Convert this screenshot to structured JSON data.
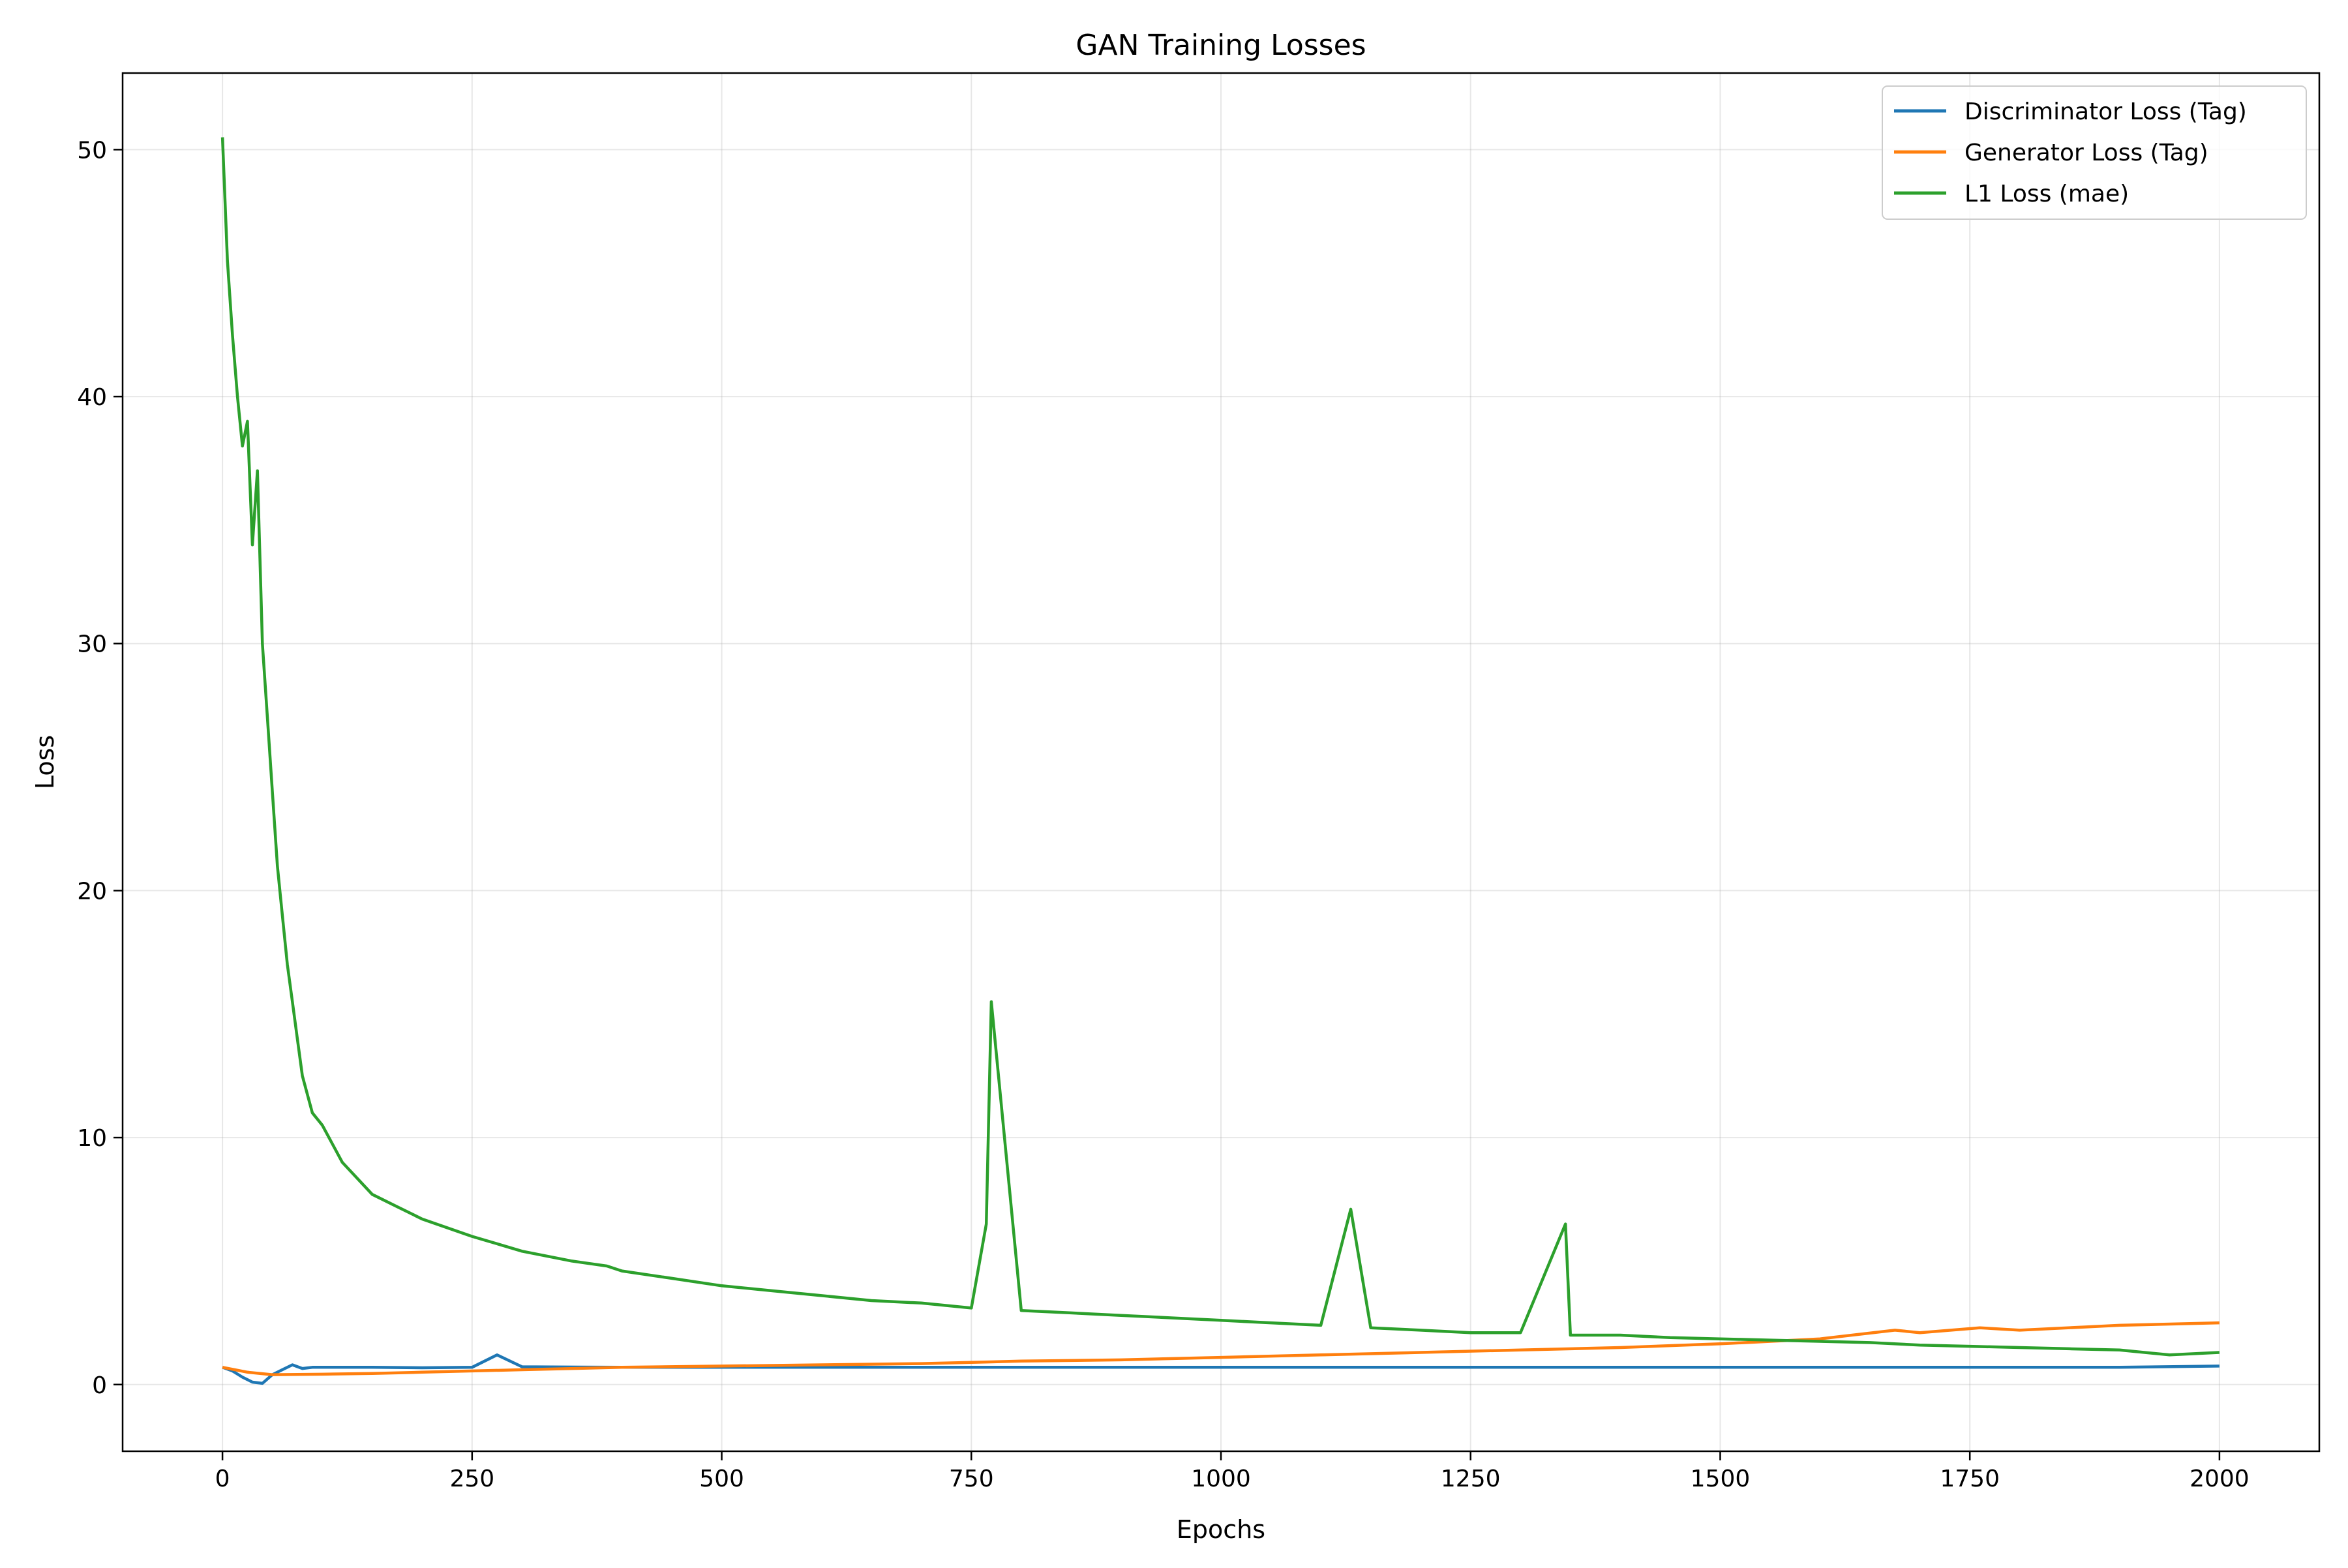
{
  "chart_data": {
    "type": "line",
    "title": "GAN Training Losses",
    "xlabel": "Epochs",
    "ylabel": "Loss",
    "xlim": [
      -100,
      2100
    ],
    "ylim": [
      -2.7,
      53.1
    ],
    "xticks": [
      0,
      250,
      500,
      750,
      1000,
      1250,
      1500,
      1750,
      2000
    ],
    "yticks": [
      0,
      10,
      20,
      30,
      40,
      50
    ],
    "grid": true,
    "legend_position": "top-right",
    "series": [
      {
        "name": "Discriminator Loss (Tag)",
        "color": "#1f77b4",
        "x": [
          0,
          10,
          20,
          30,
          40,
          50,
          60,
          70,
          80,
          90,
          100,
          150,
          200,
          250,
          275,
          300,
          400,
          500,
          600,
          700,
          800,
          900,
          1000,
          1100,
          1200,
          1300,
          1400,
          1500,
          1600,
          1700,
          1800,
          1900,
          2000
        ],
        "values": [
          0.7,
          0.55,
          0.3,
          0.1,
          0.05,
          0.4,
          0.6,
          0.8,
          0.65,
          0.7,
          0.7,
          0.7,
          0.68,
          0.7,
          1.2,
          0.72,
          0.7,
          0.7,
          0.7,
          0.7,
          0.7,
          0.7,
          0.7,
          0.7,
          0.7,
          0.7,
          0.7,
          0.7,
          0.7,
          0.7,
          0.7,
          0.7,
          0.75
        ]
      },
      {
        "name": "Generator Loss (Tag)",
        "color": "#ff7f0e",
        "x": [
          0,
          25,
          50,
          100,
          150,
          200,
          250,
          300,
          400,
          500,
          600,
          700,
          750,
          800,
          900,
          1000,
          1100,
          1200,
          1300,
          1400,
          1500,
          1600,
          1675,
          1700,
          1760,
          1800,
          1900,
          2000
        ],
        "values": [
          0.7,
          0.5,
          0.4,
          0.42,
          0.45,
          0.5,
          0.55,
          0.6,
          0.7,
          0.75,
          0.8,
          0.85,
          0.9,
          0.95,
          1.0,
          1.1,
          1.2,
          1.3,
          1.4,
          1.5,
          1.65,
          1.85,
          2.2,
          2.1,
          2.3,
          2.2,
          2.4,
          2.5
        ]
      },
      {
        "name": "L1 Loss (mae)",
        "color": "#2ca02c",
        "x": [
          0,
          5,
          10,
          15,
          20,
          25,
          30,
          35,
          40,
          45,
          50,
          55,
          60,
          65,
          70,
          75,
          80,
          90,
          100,
          120,
          150,
          175,
          200,
          250,
          275,
          300,
          350,
          385,
          400,
          450,
          500,
          550,
          600,
          650,
          700,
          750,
          765,
          770,
          800,
          850,
          900,
          950,
          1000,
          1050,
          1100,
          1130,
          1150,
          1200,
          1250,
          1300,
          1345,
          1350,
          1400,
          1450,
          1500,
          1550,
          1600,
          1650,
          1700,
          1750,
          1800,
          1850,
          1900,
          1950,
          2000
        ],
        "values": [
          50.5,
          45.5,
          42.5,
          40,
          38,
          39,
          34,
          37,
          30,
          27,
          24,
          21,
          19,
          17,
          15.5,
          14,
          12.5,
          11,
          10.5,
          9,
          7.7,
          7.2,
          6.7,
          6,
          5.7,
          5.4,
          5,
          4.8,
          4.6,
          4.3,
          4,
          3.8,
          3.6,
          3.4,
          3.3,
          3.1,
          6.5,
          15.5,
          3,
          2.9,
          2.8,
          2.7,
          2.6,
          2.5,
          2.4,
          7.1,
          2.3,
          2.2,
          2.1,
          2.1,
          6.5,
          2,
          2,
          1.9,
          1.85,
          1.8,
          1.75,
          1.7,
          1.6,
          1.55,
          1.5,
          1.45,
          1.4,
          1.2,
          1.3
        ]
      }
    ]
  }
}
